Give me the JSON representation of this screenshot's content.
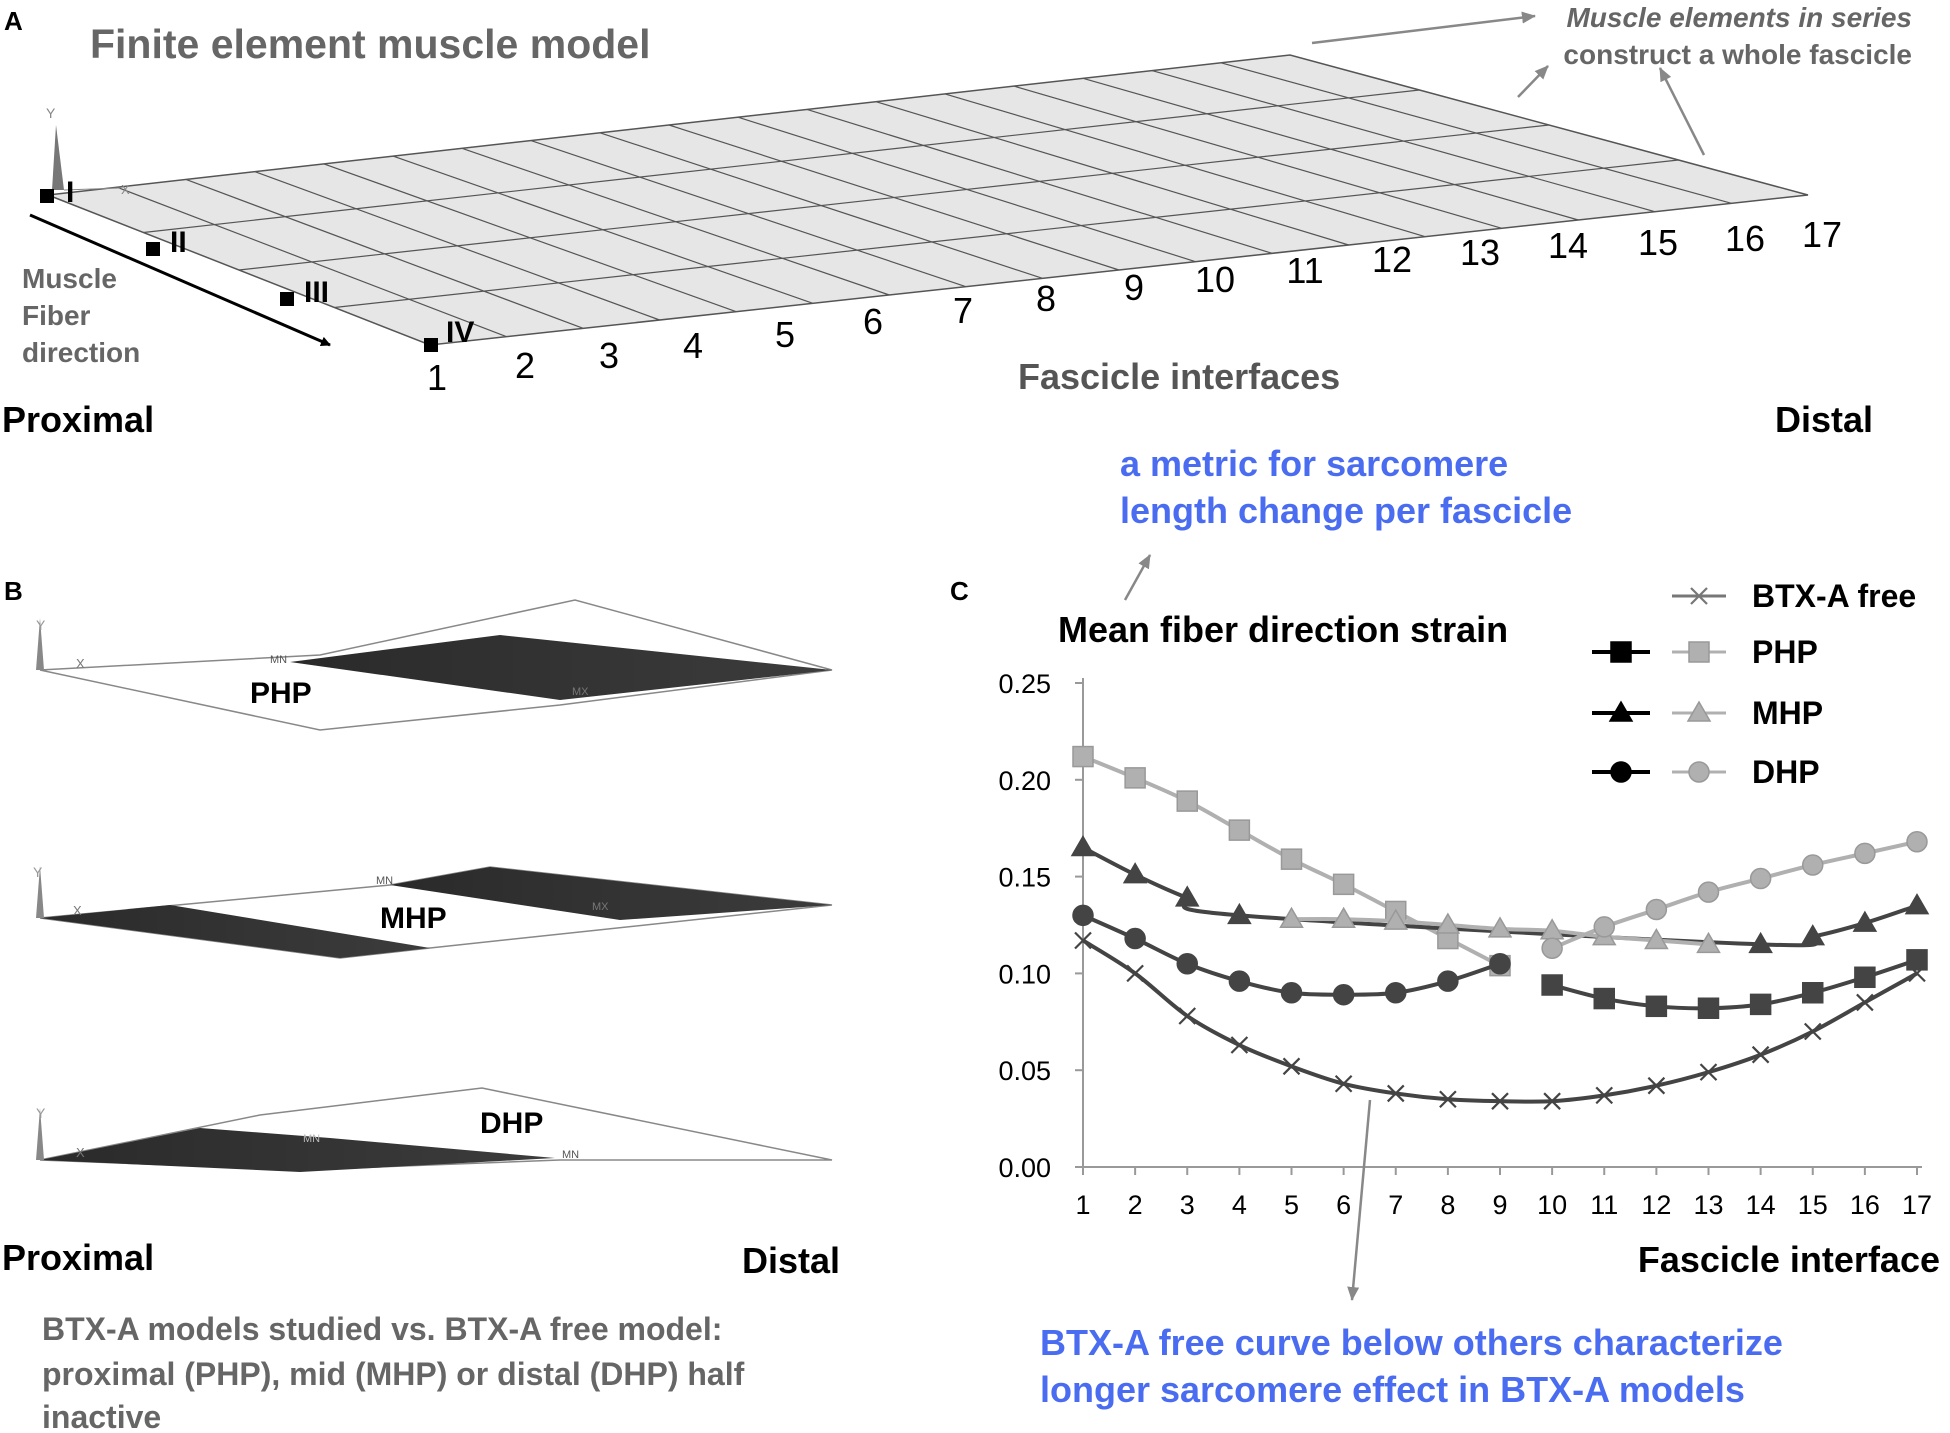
{
  "panel_a": {
    "letter": "A",
    "title": "Finite element muscle model",
    "annotation_line1": "Muscle elements in series",
    "annotation_line2": "construct a whole fascicle",
    "fiber_label": [
      "Muscle",
      "Fiber",
      "direction"
    ],
    "corners": [
      "I",
      "II",
      "III",
      "IV"
    ],
    "axis_y": "Y",
    "axis_x": "X",
    "interface_numbers": [
      "1",
      "2",
      "3",
      "4",
      "5",
      "6",
      "7",
      "8",
      "9",
      "10",
      "11",
      "12",
      "13",
      "14",
      "15",
      "16",
      "17"
    ],
    "interfaces_label": "Fascicle interfaces",
    "proximal": "Proximal",
    "distal": "Distal"
  },
  "panel_b": {
    "letter": "B",
    "models": [
      "PHP",
      "MHP",
      "DHP"
    ],
    "mn": "MN",
    "mx": "MX",
    "axis_y": "Y",
    "axis_x": "X",
    "proximal": "Proximal",
    "distal": "Distal",
    "caption": [
      "BTX-A models studied vs. BTX-A free model:",
      "proximal (PHP), mid (MHP) or distal (DHP) half",
      "inactive"
    ]
  },
  "panel_c": {
    "letter": "C",
    "metric_note": [
      "a metric for sarcomere",
      "length change per fascicle"
    ],
    "bottom_note": [
      "BTX-A free curve below others characterize",
      "longer sarcomere effect in BTX-A  models"
    ]
  },
  "colors": {
    "blue_text": "#4a6cf0",
    "gray_text": "#666666",
    "dark_series": "#444444",
    "light_series": "#b0b0b0"
  },
  "chart_data": {
    "type": "line",
    "title": "Mean fiber direction strain",
    "xlabel": "Fascicle interface",
    "ylabel": "",
    "x": [
      1,
      2,
      3,
      4,
      5,
      6,
      7,
      8,
      9,
      10,
      11,
      12,
      13,
      14,
      15,
      16,
      17
    ],
    "ylim": [
      0,
      0.25
    ],
    "yticks": [
      "0.00",
      "0.05",
      "0.10",
      "0.15",
      "0.20",
      "0.25"
    ],
    "xticks": [
      "1",
      "2",
      "3",
      "4",
      "5",
      "6",
      "7",
      "8",
      "9",
      "10",
      "11",
      "12",
      "13",
      "14",
      "15",
      "16",
      "17"
    ],
    "legend_labels": [
      "BTX-A free",
      "PHP",
      "MHP",
      "DHP"
    ],
    "series": [
      {
        "name": "BTX-A free",
        "marker": "x",
        "shade": "dark",
        "values": [
          0.117,
          0.1,
          0.078,
          0.063,
          0.052,
          0.043,
          0.038,
          0.035,
          0.034,
          0.034,
          0.037,
          0.042,
          0.049,
          0.058,
          0.07,
          0.085,
          0.1
        ]
      },
      {
        "name": "PHP (BTX-A)",
        "marker": "square",
        "shade": "light",
        "values": [
          0.212,
          0.201,
          0.189,
          0.174,
          0.159,
          0.146,
          0.132,
          0.118,
          0.104,
          null,
          null,
          null,
          null,
          null,
          null,
          null,
          null
        ]
      },
      {
        "name": "PHP (free)",
        "marker": "square",
        "shade": "dark",
        "values": [
          null,
          null,
          null,
          null,
          null,
          null,
          null,
          null,
          null,
          0.094,
          0.087,
          0.083,
          0.082,
          0.084,
          0.09,
          0.098,
          0.107
        ]
      },
      {
        "name": "MHP (free)",
        "marker": "triangle",
        "shade": "dark",
        "values": [
          0.165,
          0.151,
          0.139,
          0.13,
          null,
          null,
          null,
          null,
          null,
          null,
          null,
          null,
          null,
          0.115,
          0.119,
          0.126,
          0.135
        ]
      },
      {
        "name": "MHP (BTX-A)",
        "marker": "triangle",
        "shade": "light",
        "values": [
          null,
          null,
          null,
          null,
          0.128,
          0.128,
          0.127,
          0.125,
          0.123,
          0.122,
          0.119,
          0.117,
          0.115,
          null,
          null,
          null,
          null
        ]
      },
      {
        "name": "DHP (free)",
        "marker": "circle",
        "shade": "dark",
        "values": [
          0.13,
          0.118,
          0.105,
          0.096,
          0.09,
          0.089,
          0.09,
          0.096,
          0.105,
          null,
          null,
          null,
          null,
          null,
          null,
          null,
          null
        ]
      },
      {
        "name": "DHP (BTX-A)",
        "marker": "circle",
        "shade": "light",
        "values": [
          null,
          null,
          null,
          null,
          null,
          null,
          null,
          null,
          null,
          0.113,
          0.124,
          0.133,
          0.142,
          0.149,
          0.156,
          0.162,
          0.168
        ]
      }
    ]
  }
}
